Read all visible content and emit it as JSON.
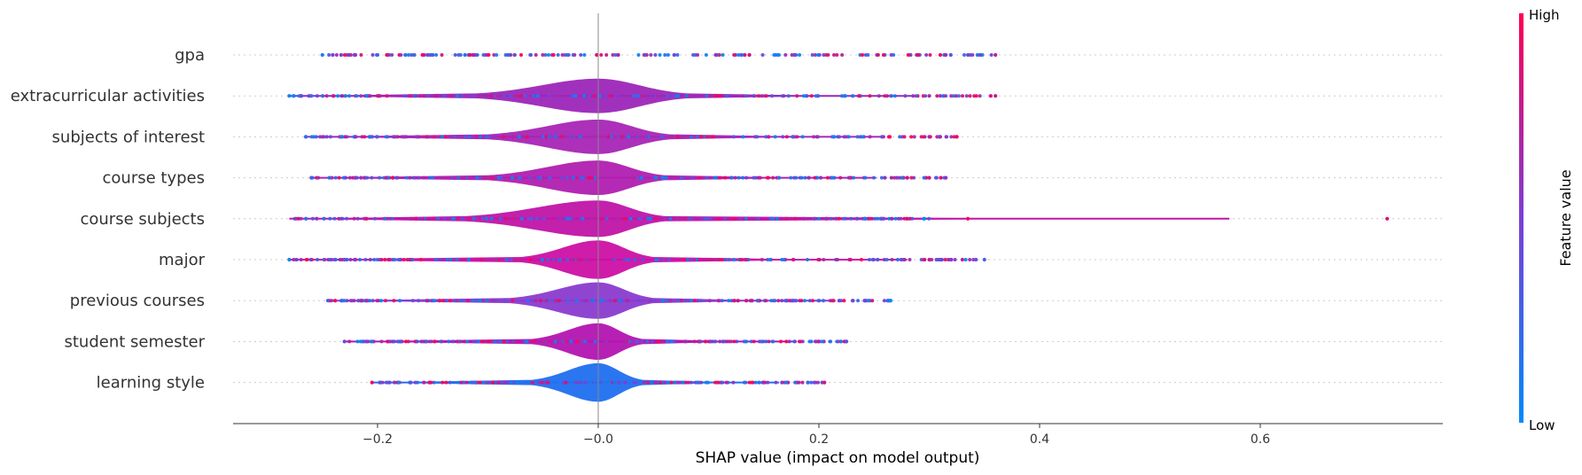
{
  "chart_data": {
    "type": "violin",
    "xlabel": "SHAP value (impact on model output)",
    "xlim": [
      -0.33,
      0.77
    ],
    "xticks": [
      -0.2,
      -0.0,
      0.2,
      0.4,
      0.6
    ],
    "xtick_labels": [
      "−0.2",
      "−0.0",
      "0.2",
      "0.4",
      "0.6"
    ],
    "colorbar": {
      "label": "Feature value",
      "high_label": "High",
      "low_label": "Low",
      "low_color": "#008bfb",
      "mid_color": "#7c3fd6",
      "high_color": "#ff0052"
    },
    "zero_line": 0,
    "features": [
      {
        "name": "gpa",
        "min": -0.25,
        "max": 0.36,
        "width": 0.0,
        "body_left": -0.12,
        "body_right": 0.1,
        "color_body": "#b020b4",
        "outliers": [
          -0.25,
          -0.22,
          -0.2,
          0.29,
          0.31,
          0.315,
          0.36
        ]
      },
      {
        "name": "extracurricular activities",
        "min": -0.28,
        "max": 0.36,
        "width": 0.8,
        "body_left": -0.11,
        "body_right": 0.08,
        "color_body": "#9c26b8",
        "outliers": [
          -0.28,
          -0.26,
          -0.21,
          -0.2,
          0.3,
          0.31,
          0.36
        ]
      },
      {
        "name": "subjects of interest",
        "min": -0.265,
        "max": 0.325,
        "width": 0.8,
        "body_left": -0.1,
        "body_right": 0.065,
        "color_body": "#a825b5",
        "outliers": [
          -0.265,
          -0.22,
          -0.205,
          0.3,
          0.31,
          0.325
        ]
      },
      {
        "name": "course types",
        "min": -0.26,
        "max": 0.315,
        "width": 0.8,
        "body_left": -0.1,
        "body_right": 0.06,
        "color_body": "#b01fb0",
        "outliers": [
          -0.26,
          -0.22,
          -0.215,
          0.28,
          0.3,
          0.315
        ]
      },
      {
        "name": "course subjects",
        "min": -0.28,
        "max": 0.715,
        "width": 0.85,
        "body_left": -0.12,
        "body_right": 0.06,
        "color_body": "#c014a8",
        "outliers": [
          -0.275,
          -0.265,
          -0.235,
          -0.21,
          0.28,
          0.295,
          0.335,
          0.715
        ]
      },
      {
        "name": "major",
        "min": -0.28,
        "max": 0.35,
        "width": 0.9,
        "body_left": -0.07,
        "body_right": 0.05,
        "color_body": "#cc10a4",
        "outliers": [
          -0.28,
          -0.23,
          -0.22,
          0.3,
          0.32,
          0.33,
          0.35
        ]
      },
      {
        "name": "previous courses",
        "min": -0.245,
        "max": 0.265,
        "width": 0.85,
        "body_left": -0.08,
        "body_right": 0.05,
        "color_body": "#8a3bcf",
        "outliers": [
          -0.245,
          -0.215,
          0.245,
          0.265
        ]
      },
      {
        "name": "student semester",
        "min": -0.23,
        "max": 0.225,
        "width": 0.85,
        "body_left": -0.06,
        "body_right": 0.04,
        "color_body": "#b314b0",
        "outliers": [
          -0.23,
          -0.21,
          0.2,
          0.22,
          0.225
        ]
      },
      {
        "name": "learning style",
        "min": -0.205,
        "max": 0.205,
        "width": 0.9,
        "body_left": -0.06,
        "body_right": 0.04,
        "color_body": "#1f6ff0",
        "outliers": [
          -0.205,
          -0.19,
          -0.17,
          0.19,
          0.205
        ]
      }
    ]
  }
}
